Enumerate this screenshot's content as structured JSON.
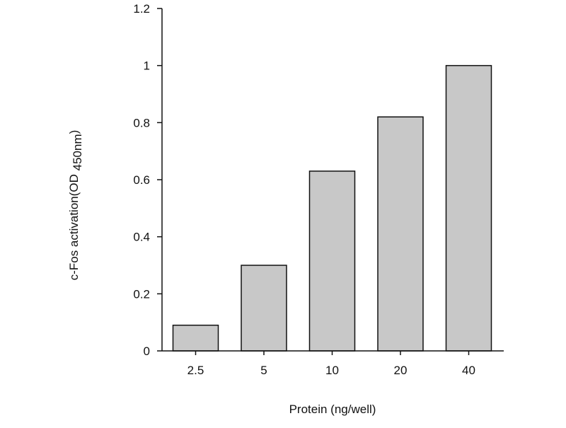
{
  "chart_data": {
    "type": "bar",
    "title": "",
    "categories": [
      "2.5",
      "5",
      "10",
      "20",
      "40"
    ],
    "values": [
      0.09,
      0.3,
      0.63,
      0.82,
      1.0
    ],
    "xlabel": "Protein (ng/well)",
    "ylabel": "c-Fos activation(OD 450nm)",
    "ylabel_main": "c-Fos activation(OD ",
    "ylabel_sub": "450nm",
    "ylabel_close": ")",
    "ylim": [
      0,
      1.2
    ],
    "yticks": [
      "0",
      "0.2",
      "0.4",
      "0.6",
      "0.8",
      "1",
      "1.2"
    ],
    "grid": false,
    "bar_color": "#c8c8c8",
    "edge_color": "#111111"
  }
}
